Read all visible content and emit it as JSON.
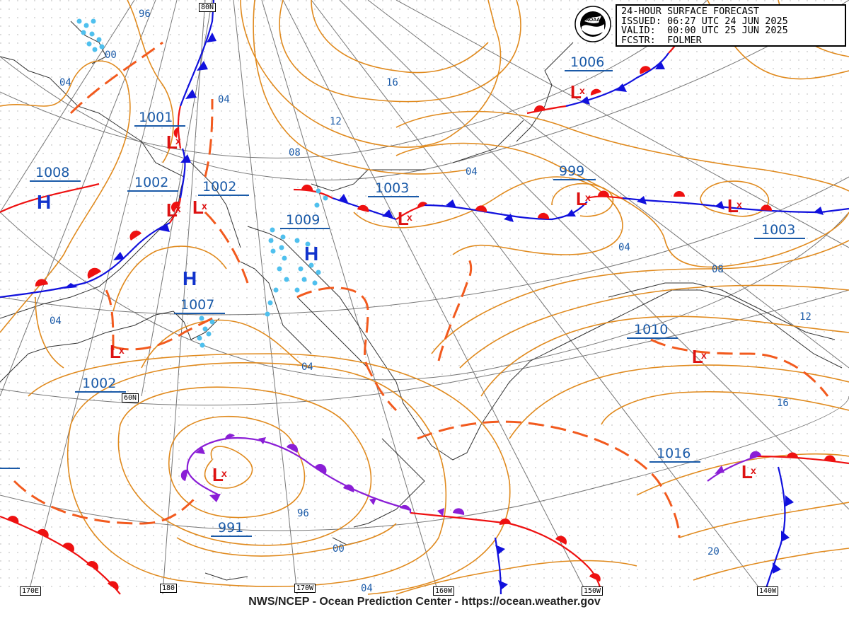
{
  "info": {
    "line1": "24-HOUR SURFACE FORECAST",
    "line2": "ISSUED: 06:27 UTC 24 JUN 2025",
    "line3": "VALID:  00:00 UTC 25 JUN 2025",
    "line4": "FCSTR:  FOLMER"
  },
  "footer": "NWS/NCEP - Ocean Prediction Center - https://ocean.weather.gov",
  "logo_text": "NOAA",
  "lon_labels": {
    "lat80": "80N",
    "lat60": "60N",
    "lon170e": "170E",
    "lon180": "180",
    "lon170w": "170W",
    "lon160w": "160W",
    "lon150w": "150W",
    "lon140w": "140W"
  },
  "pressure_centers": [
    {
      "id": "c1001",
      "type": "L",
      "value": "1001"
    },
    {
      "id": "c1008",
      "type": "H",
      "value": "1008"
    },
    {
      "id": "c1002a",
      "type": "L",
      "value": "1002"
    },
    {
      "id": "c1002b",
      "type": "L",
      "value": "1002"
    },
    {
      "id": "c1009",
      "type": "H",
      "value": "1009"
    },
    {
      "id": "c1007",
      "type": "H",
      "value": "1007"
    },
    {
      "id": "c1002c",
      "type": "L",
      "value": "1002"
    },
    {
      "id": "c1003a",
      "type": "L",
      "value": "1003"
    },
    {
      "id": "c999",
      "type": "L",
      "value": "999"
    },
    {
      "id": "c1006",
      "type": "L",
      "value": "1006"
    },
    {
      "id": "c1003b",
      "type": "L",
      "value": "1003"
    },
    {
      "id": "c1010",
      "type": "L",
      "value": "1010"
    },
    {
      "id": "c991",
      "type": "L",
      "value": "991"
    },
    {
      "id": "c1016",
      "type": "L",
      "value": "1016"
    }
  ],
  "isobar_labels": [
    "96",
    "00",
    "04",
    "04",
    "16",
    "12",
    "08",
    "04",
    "04",
    "08",
    "12",
    "04",
    "04",
    "16",
    "96",
    "00",
    "04",
    "20"
  ],
  "colors": {
    "isobar": "#e08a1e",
    "trough": "#f25a1e",
    "warm_front": "#ee1111",
    "cold_front": "#1111dd",
    "occluded": "#8a1ed6",
    "high": "#1133cc",
    "low": "#dd1111",
    "label_blue": "#1a5aa8",
    "precip": "#4fc0ee",
    "grid": "#999999",
    "coast": "#333333"
  }
}
